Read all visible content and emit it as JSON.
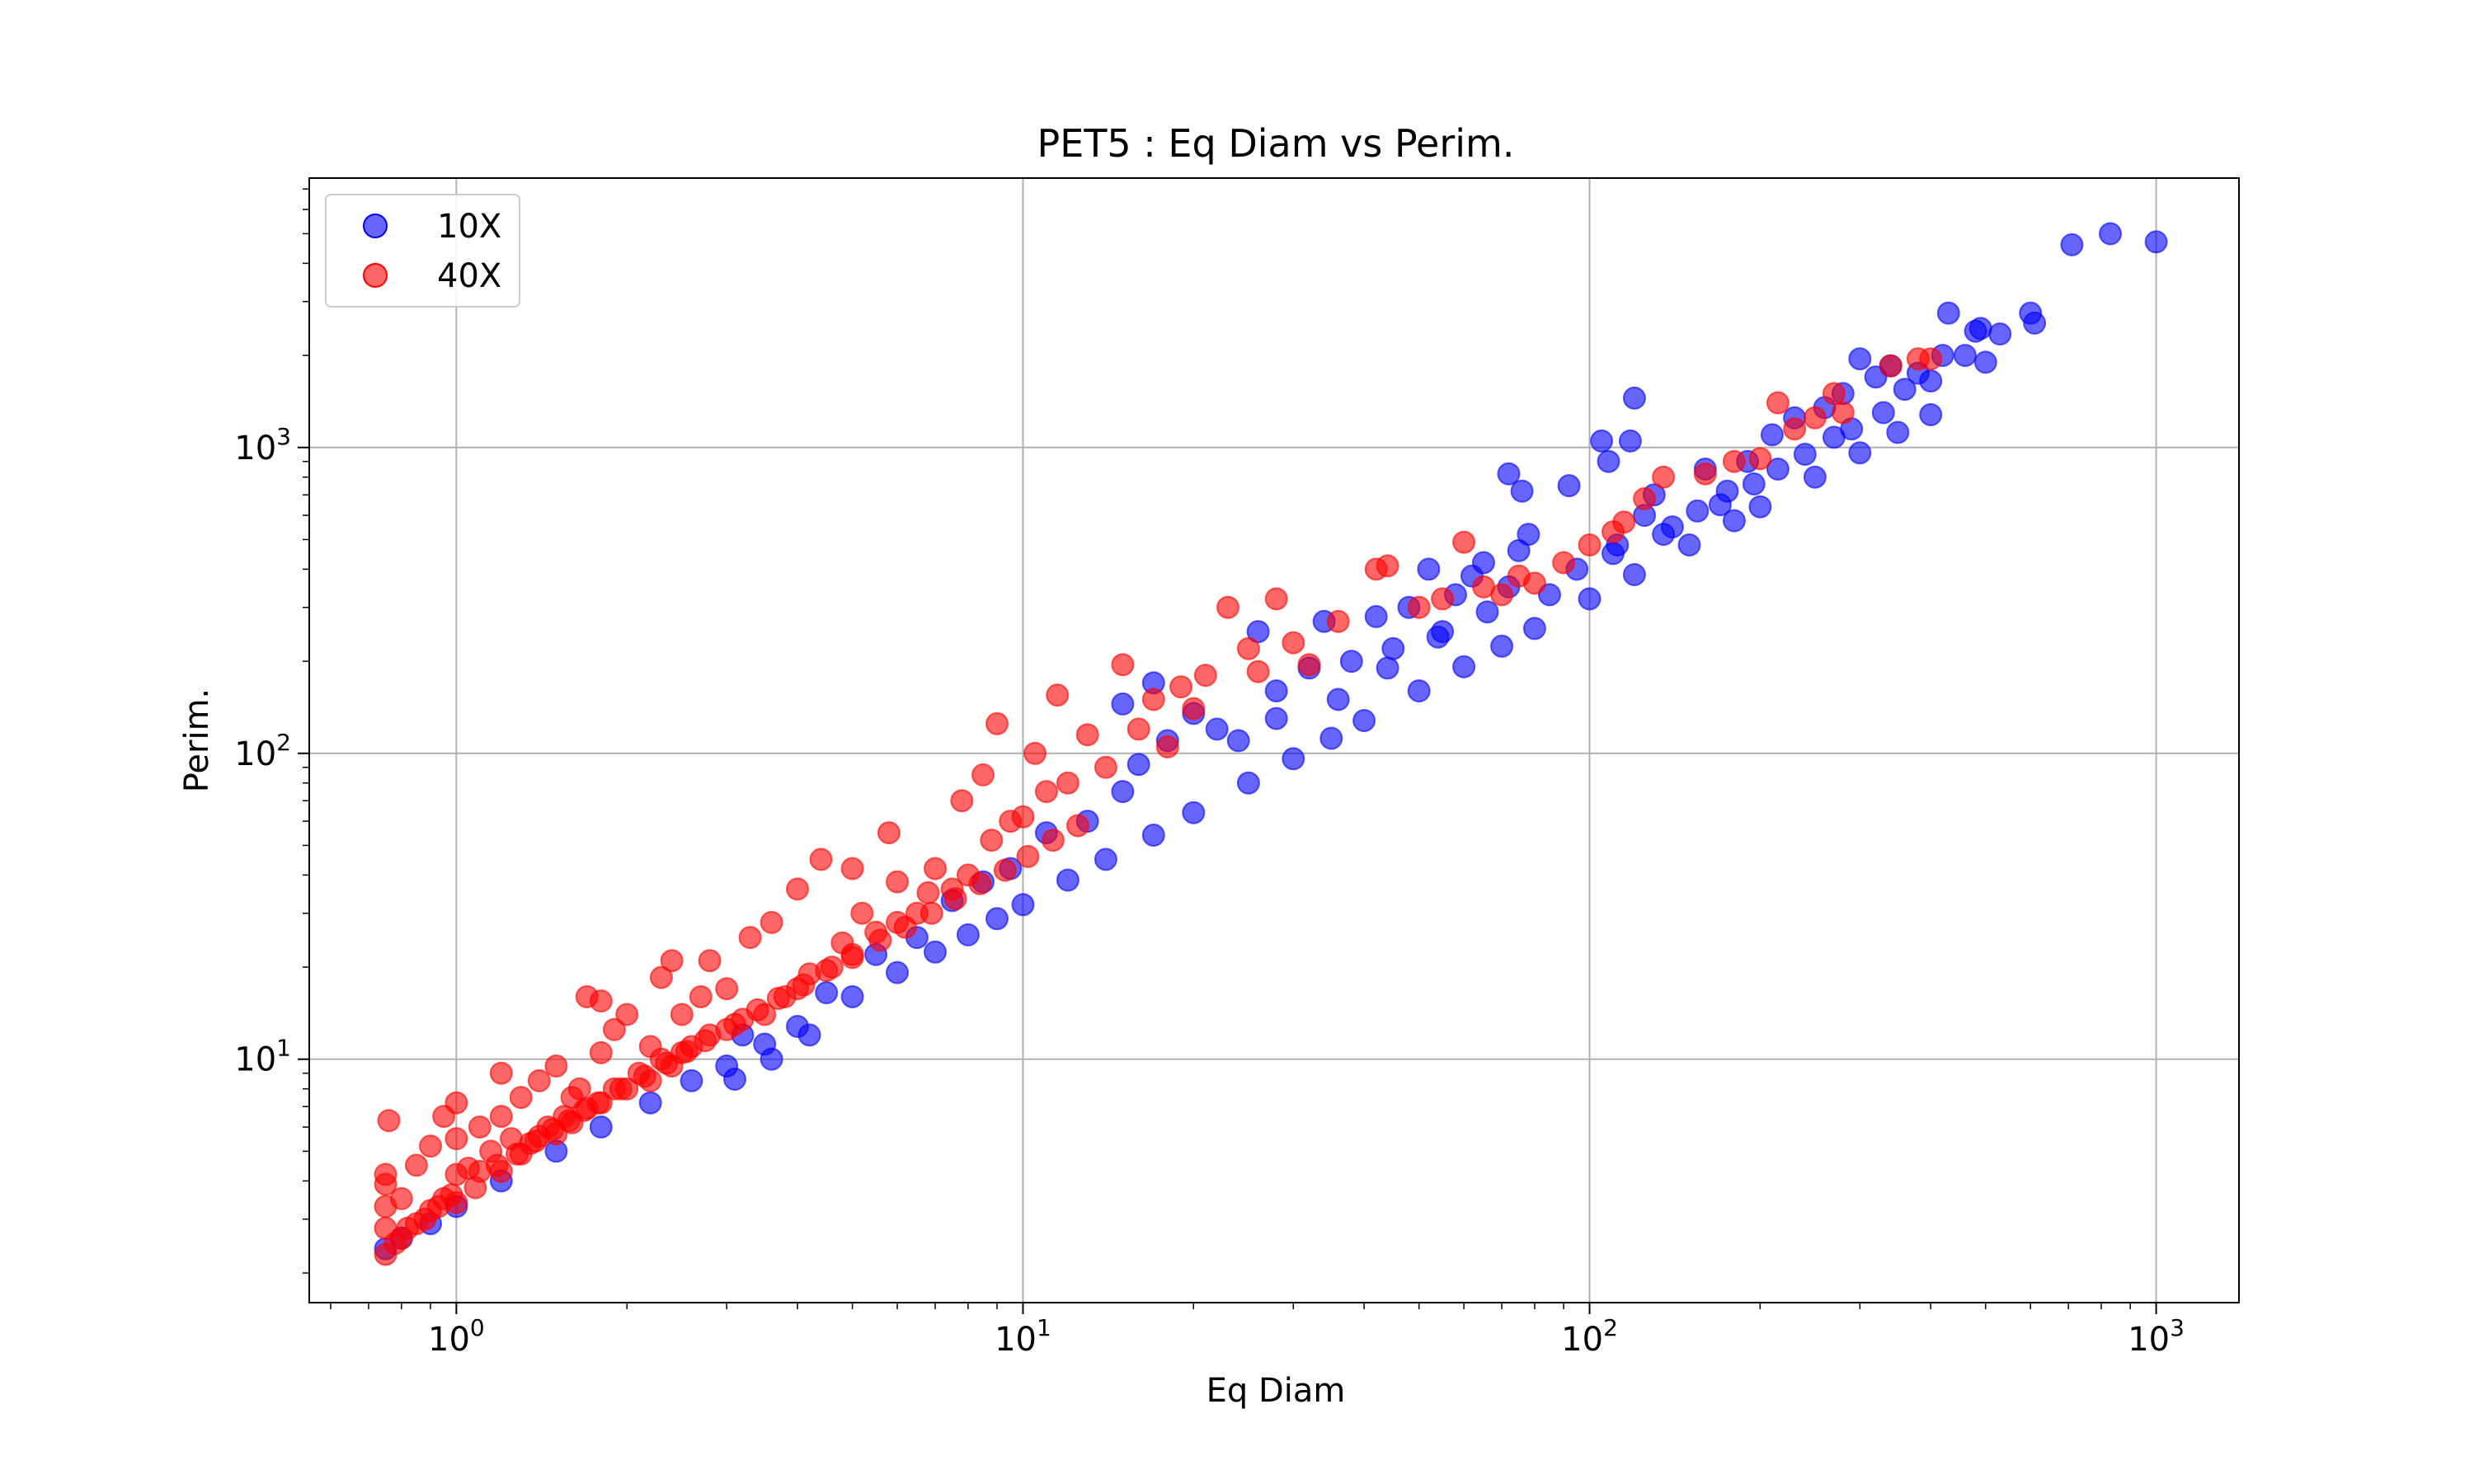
{
  "chart_data": {
    "type": "scatter",
    "title": "PET5 : Eq Diam vs Perim.",
    "xlabel": "Eq Diam",
    "ylabel": "Perim.",
    "xscale": "log",
    "yscale": "log",
    "xlim": [
      0.55,
      1400
    ],
    "ylim": [
      1.6,
      7600
    ],
    "grid": true,
    "legend_position": "top-left",
    "x_ticks": [
      {
        "base": "10",
        "exp": "0",
        "value": 1
      },
      {
        "base": "10",
        "exp": "1",
        "value": 10
      },
      {
        "base": "10",
        "exp": "2",
        "value": 100
      },
      {
        "base": "10",
        "exp": "3",
        "value": 1000
      }
    ],
    "y_ticks": [
      {
        "base": "10",
        "exp": "1",
        "value": 10
      },
      {
        "base": "10",
        "exp": "2",
        "value": 100
      },
      {
        "base": "10",
        "exp": "3",
        "value": 1000
      }
    ],
    "series": [
      {
        "name": "10X",
        "color": "#0000ff",
        "points": [
          [
            0.75,
            2.4
          ],
          [
            0.8,
            2.6
          ],
          [
            0.9,
            2.9
          ],
          [
            1.0,
            3.3
          ],
          [
            1.2,
            4.0
          ],
          [
            1.5,
            5.0
          ],
          [
            1.8,
            6.0
          ],
          [
            2.2,
            7.2
          ],
          [
            2.6,
            8.5
          ],
          [
            3.0,
            9.5
          ],
          [
            3.5,
            11.2
          ],
          [
            4.0,
            12.8
          ],
          [
            5.0,
            16.0
          ],
          [
            6.0,
            19.2
          ],
          [
            7.0,
            22.4
          ],
          [
            8.0,
            25.5
          ],
          [
            9.0,
            28.8
          ],
          [
            10.0,
            32.0
          ],
          [
            12.0,
            38.5
          ],
          [
            14.0,
            45.0
          ],
          [
            17.0,
            54.0
          ],
          [
            20.0,
            64.0
          ],
          [
            25.0,
            80.0
          ],
          [
            30.0,
            96.0
          ],
          [
            35.0,
            112.0
          ],
          [
            40.0,
            128.0
          ],
          [
            50.0,
            160.0
          ],
          [
            60.0,
            192.0
          ],
          [
            70.0,
            224.0
          ],
          [
            80.0,
            256.0
          ],
          [
            100.0,
            320.0
          ],
          [
            120.0,
            384.0
          ],
          [
            150.0,
            480.0
          ],
          [
            180.0,
            576.0
          ],
          [
            200.0,
            640.0
          ],
          [
            250.0,
            800.0
          ],
          [
            300.0,
            960.0
          ],
          [
            350.0,
            1120.0
          ],
          [
            400.0,
            1280.0
          ],
          [
            3.2,
            12.0
          ],
          [
            4.5,
            16.5
          ],
          [
            5.5,
            22.0
          ],
          [
            6.5,
            25.0
          ],
          [
            7.5,
            33.0
          ],
          [
            8.5,
            38.0
          ],
          [
            9.5,
            42.0
          ],
          [
            11.0,
            55.0
          ],
          [
            13.0,
            60.0
          ],
          [
            15.0,
            75.0
          ],
          [
            16.0,
            92.0
          ],
          [
            18.0,
            110.0
          ],
          [
            15.0,
            145.0
          ],
          [
            17.0,
            170.0
          ],
          [
            20.0,
            135.0
          ],
          [
            22.0,
            120.0
          ],
          [
            26.0,
            250.0
          ],
          [
            28.0,
            160.0
          ],
          [
            32.0,
            190.0
          ],
          [
            34.0,
            270.0
          ],
          [
            38.0,
            200.0
          ],
          [
            42.0,
            280.0
          ],
          [
            45.0,
            220.0
          ],
          [
            48.0,
            300.0
          ],
          [
            52.0,
            400.0
          ],
          [
            55.0,
            250.0
          ],
          [
            58.0,
            330.0
          ],
          [
            62.0,
            380.0
          ],
          [
            65.0,
            420.0
          ],
          [
            72.0,
            350.0
          ],
          [
            75.0,
            460.0
          ],
          [
            78.0,
            520.0
          ],
          [
            72.0,
            820.0
          ],
          [
            76.0,
            720.0
          ],
          [
            92.0,
            750.0
          ],
          [
            105.0,
            1050.0
          ],
          [
            108.0,
            900.0
          ],
          [
            118.0,
            1050.0
          ],
          [
            120.0,
            1450.0
          ],
          [
            110.0,
            450.0
          ],
          [
            125.0,
            600.0
          ],
          [
            130.0,
            700.0
          ],
          [
            140.0,
            550.0
          ],
          [
            160.0,
            850.0
          ],
          [
            170.0,
            650.0
          ],
          [
            190.0,
            900.0
          ],
          [
            210.0,
            1100.0
          ],
          [
            230.0,
            1250.0
          ],
          [
            260.0,
            1350.0
          ],
          [
            280.0,
            1500.0
          ],
          [
            300.0,
            1950.0
          ],
          [
            320.0,
            1700.0
          ],
          [
            340.0,
            1850.0
          ],
          [
            360.0,
            1550.0
          ],
          [
            380.0,
            1750.0
          ],
          [
            400.0,
            1650.0
          ],
          [
            420.0,
            2000.0
          ],
          [
            430.0,
            2750.0
          ],
          [
            460.0,
            2000.0
          ],
          [
            480.0,
            2400.0
          ],
          [
            490.0,
            2450.0
          ],
          [
            500.0,
            1900.0
          ],
          [
            530.0,
            2350.0
          ],
          [
            600.0,
            2750.0
          ],
          [
            610.0,
            2550.0
          ],
          [
            710.0,
            4600.0
          ],
          [
            830.0,
            5000.0
          ],
          [
            1000.0,
            4700.0
          ],
          [
            3.1,
            8.6
          ],
          [
            3.6,
            10.0
          ],
          [
            4.2,
            12.0
          ],
          [
            24.0,
            110.0
          ],
          [
            28.0,
            130.0
          ],
          [
            36.0,
            150.0
          ],
          [
            44.0,
            190.0
          ],
          [
            54.0,
            240.0
          ],
          [
            66.0,
            290.0
          ],
          [
            85.0,
            330.0
          ],
          [
            95.0,
            400.0
          ],
          [
            112.0,
            480.0
          ],
          [
            135.0,
            520.0
          ],
          [
            155.0,
            620.0
          ],
          [
            175.0,
            720.0
          ],
          [
            195.0,
            760.0
          ],
          [
            215.0,
            850.0
          ],
          [
            240.0,
            950.0
          ],
          [
            270.0,
            1080.0
          ],
          [
            290.0,
            1150.0
          ],
          [
            330.0,
            1300.0
          ]
        ]
      },
      {
        "name": "40X",
        "color": "#ff0000",
        "points": [
          [
            0.75,
            2.3
          ],
          [
            0.75,
            2.8
          ],
          [
            0.75,
            3.3
          ],
          [
            0.75,
            3.9
          ],
          [
            0.75,
            4.2
          ],
          [
            0.76,
            6.3
          ],
          [
            0.8,
            2.6
          ],
          [
            0.8,
            3.5
          ],
          [
            0.85,
            2.9
          ],
          [
            0.85,
            4.5
          ],
          [
            0.9,
            3.2
          ],
          [
            0.9,
            5.2
          ],
          [
            0.95,
            3.5
          ],
          [
            0.95,
            6.5
          ],
          [
            1.0,
            3.4
          ],
          [
            1.0,
            4.2
          ],
          [
            1.0,
            5.5
          ],
          [
            1.0,
            7.2
          ],
          [
            1.05,
            4.4
          ],
          [
            1.1,
            4.3
          ],
          [
            1.1,
            6.0
          ],
          [
            1.15,
            5.0
          ],
          [
            1.2,
            4.3
          ],
          [
            1.2,
            6.5
          ],
          [
            1.2,
            9.0
          ],
          [
            1.25,
            5.5
          ],
          [
            1.3,
            4.9
          ],
          [
            1.3,
            7.5
          ],
          [
            1.35,
            5.3
          ],
          [
            1.4,
            5.6
          ],
          [
            1.4,
            8.5
          ],
          [
            1.45,
            6.0
          ],
          [
            1.5,
            5.7
          ],
          [
            1.5,
            9.5
          ],
          [
            1.55,
            6.5
          ],
          [
            1.6,
            6.2
          ],
          [
            1.6,
            7.5
          ],
          [
            1.65,
            8.0
          ],
          [
            1.7,
            6.9
          ],
          [
            1.7,
            16.0
          ],
          [
            1.8,
            7.2
          ],
          [
            1.8,
            10.5
          ],
          [
            1.8,
            15.5
          ],
          [
            1.9,
            8.0
          ],
          [
            1.9,
            12.5
          ],
          [
            2.0,
            8.0
          ],
          [
            2.0,
            14.0
          ],
          [
            2.1,
            9.0
          ],
          [
            2.2,
            8.5
          ],
          [
            2.2,
            11.0
          ],
          [
            2.3,
            10.0
          ],
          [
            2.3,
            18.5
          ],
          [
            2.4,
            9.5
          ],
          [
            2.4,
            21.0
          ],
          [
            2.5,
            10.5
          ],
          [
            2.5,
            14.0
          ],
          [
            2.6,
            11.0
          ],
          [
            2.7,
            16.0
          ],
          [
            2.8,
            12.0
          ],
          [
            2.8,
            21.0
          ],
          [
            3.0,
            12.5
          ],
          [
            3.0,
            17.0
          ],
          [
            3.2,
            13.5
          ],
          [
            3.3,
            25.0
          ],
          [
            3.5,
            14.0
          ],
          [
            3.6,
            28.0
          ],
          [
            3.8,
            16.0
          ],
          [
            4.0,
            17.0
          ],
          [
            4.0,
            36.0
          ],
          [
            4.2,
            19.0
          ],
          [
            4.4,
            45.0
          ],
          [
            4.6,
            20.0
          ],
          [
            4.8,
            24.0
          ],
          [
            5.0,
            22.0
          ],
          [
            5.0,
            42.0
          ],
          [
            5.2,
            30.0
          ],
          [
            5.5,
            26.0
          ],
          [
            5.8,
            55.0
          ],
          [
            6.0,
            28.0
          ],
          [
            6.0,
            38.0
          ],
          [
            6.5,
            30.0
          ],
          [
            6.8,
            35.0
          ],
          [
            7.0,
            42.0
          ],
          [
            7.5,
            36.0
          ],
          [
            7.8,
            70.0
          ],
          [
            8.0,
            40.0
          ],
          [
            8.5,
            85.0
          ],
          [
            8.8,
            52.0
          ],
          [
            9.0,
            125.0
          ],
          [
            9.5,
            60.0
          ],
          [
            10.0,
            62.0
          ],
          [
            10.5,
            100.0
          ],
          [
            11.0,
            75.0
          ],
          [
            11.5,
            155.0
          ],
          [
            12.0,
            80.0
          ],
          [
            13.0,
            115.0
          ],
          [
            14.0,
            90.0
          ],
          [
            15.0,
            195.0
          ],
          [
            16.0,
            120.0
          ],
          [
            17.0,
            150.0
          ],
          [
            18.0,
            105.0
          ],
          [
            19.0,
            165.0
          ],
          [
            20.0,
            140.0
          ],
          [
            21.0,
            180.0
          ],
          [
            23.0,
            300.0
          ],
          [
            25.0,
            220.0
          ],
          [
            26.0,
            185.0
          ],
          [
            28.0,
            320.0
          ],
          [
            30.0,
            230.0
          ],
          [
            32.0,
            195.0
          ],
          [
            36.0,
            270.0
          ],
          [
            42.0,
            400.0
          ],
          [
            44.0,
            410.0
          ],
          [
            50.0,
            300.0
          ],
          [
            55.0,
            320.0
          ],
          [
            60.0,
            490.0
          ],
          [
            65.0,
            350.0
          ],
          [
            70.0,
            330.0
          ],
          [
            75.0,
            380.0
          ],
          [
            80.0,
            360.0
          ],
          [
            90.0,
            420.0
          ],
          [
            100.0,
            480.0
          ],
          [
            110.0,
            530.0
          ],
          [
            115.0,
            570.0
          ],
          [
            125.0,
            680.0
          ],
          [
            135.0,
            800.0
          ],
          [
            160.0,
            820.0
          ],
          [
            180.0,
            900.0
          ],
          [
            200.0,
            920.0
          ],
          [
            215.0,
            1400.0
          ],
          [
            230.0,
            1150.0
          ],
          [
            250.0,
            1250.0
          ],
          [
            270.0,
            1500.0
          ],
          [
            280.0,
            1300.0
          ],
          [
            340.0,
            1850.0
          ],
          [
            380.0,
            1950.0
          ],
          [
            400.0,
            1950.0
          ],
          [
            0.78,
            2.5
          ],
          [
            0.82,
            2.8
          ],
          [
            0.88,
            3.0
          ],
          [
            0.93,
            3.3
          ],
          [
            0.98,
            3.6
          ],
          [
            1.08,
            3.8
          ],
          [
            1.18,
            4.5
          ],
          [
            1.28,
            4.9
          ],
          [
            1.38,
            5.4
          ],
          [
            1.48,
            5.9
          ],
          [
            1.58,
            6.3
          ],
          [
            1.68,
            6.8
          ],
          [
            1.78,
            7.2
          ],
          [
            1.95,
            8.0
          ],
          [
            2.15,
            8.8
          ],
          [
            2.35,
            9.7
          ],
          [
            2.55,
            10.6
          ],
          [
            2.75,
            11.5
          ],
          [
            3.1,
            13.0
          ],
          [
            3.4,
            14.5
          ],
          [
            3.7,
            15.8
          ],
          [
            4.1,
            17.5
          ],
          [
            4.5,
            19.5
          ],
          [
            5.0,
            21.5
          ],
          [
            5.6,
            24.5
          ],
          [
            6.2,
            27.0
          ],
          [
            6.9,
            30.0
          ],
          [
            7.6,
            33.5
          ],
          [
            8.4,
            37.5
          ],
          [
            9.3,
            41.5
          ],
          [
            10.2,
            46.0
          ],
          [
            11.3,
            52.0
          ],
          [
            12.5,
            58.0
          ]
        ]
      }
    ]
  }
}
